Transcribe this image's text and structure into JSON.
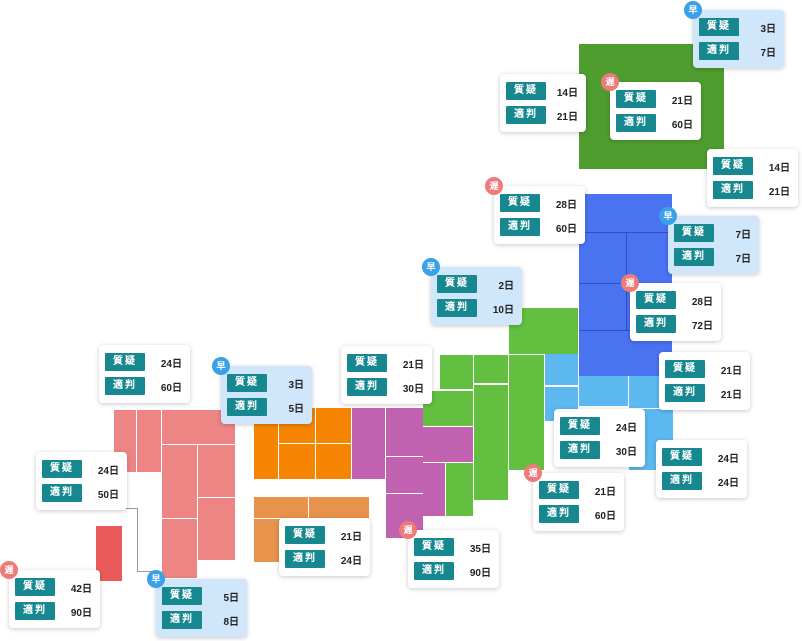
{
  "colors": {
    "hokkaido": "#4f9d2f",
    "tohoku": "#4a73f2",
    "kanto": "#5db8f0",
    "chubu": "#63bf3f",
    "kinki": "#c062b0",
    "chugoku": "#f58400",
    "shikoku": "#e8934c",
    "kyushu": "#ee8585",
    "okinawa": "#ec5b5b",
    "label_bg": "#17888f",
    "early_badge": "#3aa0e8",
    "late_badge": "#ef7a7a",
    "early_card": "#cfe6fb"
  },
  "labels": {
    "inquiry": "質疑",
    "decision": "適判"
  },
  "badges": {
    "early": "早",
    "late": "遅"
  },
  "cards": [
    {
      "id": "hokkaido-nw",
      "status": "normal",
      "inquiry": "14日",
      "decision": "21日"
    },
    {
      "id": "hokkaido-center",
      "status": "late",
      "inquiry": "21日",
      "decision": "60日"
    },
    {
      "id": "hokkaido-ne",
      "status": "early",
      "inquiry": "3日",
      "decision": "7日"
    },
    {
      "id": "hokkaido-e",
      "status": "normal",
      "inquiry": "14日",
      "decision": "21日"
    },
    {
      "id": "aomori",
      "status": "late",
      "inquiry": "28日",
      "decision": "60日"
    },
    {
      "id": "iwate",
      "status": "early",
      "inquiry": "7日",
      "decision": "7日"
    },
    {
      "id": "niigata",
      "status": "early",
      "inquiry": "2日",
      "decision": "10日"
    },
    {
      "id": "miyagi",
      "status": "late",
      "inquiry": "28日",
      "decision": "72日"
    },
    {
      "id": "fukushima",
      "status": "normal",
      "inquiry": "21日",
      "decision": "21日"
    },
    {
      "id": "kanto-inner",
      "status": "normal",
      "inquiry": "24日",
      "decision": "30日"
    },
    {
      "id": "chiba",
      "status": "normal",
      "inquiry": "24日",
      "decision": "24日"
    },
    {
      "id": "chubu-south",
      "status": "late",
      "inquiry": "21日",
      "decision": "60日"
    },
    {
      "id": "kinki-north",
      "status": "normal",
      "inquiry": "21日",
      "decision": "30日"
    },
    {
      "id": "kinki-south",
      "status": "late",
      "inquiry": "35日",
      "decision": "90日"
    },
    {
      "id": "chugoku",
      "status": "early",
      "inquiry": "3日",
      "decision": "5日"
    },
    {
      "id": "shikoku",
      "status": "normal",
      "inquiry": "21日",
      "decision": "24日"
    },
    {
      "id": "kyushu-north",
      "status": "normal",
      "inquiry": "24日",
      "decision": "60日"
    },
    {
      "id": "kyushu-west",
      "status": "normal",
      "inquiry": "24日",
      "decision": "50日"
    },
    {
      "id": "kyushu-south",
      "status": "early",
      "inquiry": "5日",
      "decision": "8日"
    },
    {
      "id": "okinawa",
      "status": "late",
      "inquiry": "42日",
      "decision": "90日"
    }
  ]
}
